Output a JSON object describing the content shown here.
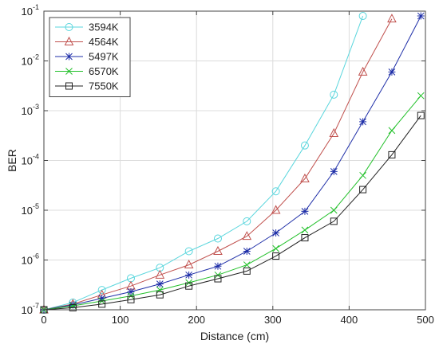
{
  "chart_data": {
    "type": "line",
    "title": "",
    "xlabel": "Distance (cm)",
    "ylabel": "BER",
    "xlim": [
      0,
      500
    ],
    "ylim": [
      1e-07,
      0.1
    ],
    "yscale": "log",
    "grid": true,
    "legend_position": "top-left",
    "x_ticks": [
      0,
      100,
      200,
      300,
      400,
      500
    ],
    "y_tick_exponents": [
      -7,
      -6,
      -5,
      -4,
      -3,
      -2,
      -1
    ],
    "series": [
      {
        "name": "3594K",
        "color": "#5ad6dd",
        "marker": "circle",
        "x": [
          0,
          38,
          76,
          114,
          152,
          190,
          228,
          266,
          304,
          342,
          380,
          418
        ],
        "y": [
          1e-07,
          1.4e-07,
          2.5e-07,
          4.3e-07,
          7e-07,
          1.5e-06,
          2.7e-06,
          6e-06,
          2.4e-05,
          0.0002,
          0.0021,
          0.08
        ]
      },
      {
        "name": "4564K",
        "color": "#c0504d",
        "marker": "triangle",
        "x": [
          0,
          38,
          76,
          114,
          152,
          190,
          228,
          266,
          304,
          342,
          380,
          418,
          456
        ],
        "y": [
          1e-07,
          1.3e-07,
          2e-07,
          3e-07,
          5e-07,
          8e-07,
          1.5e-06,
          3e-06,
          1e-05,
          4.3e-05,
          0.00035,
          0.006,
          0.07
        ]
      },
      {
        "name": "5497K",
        "color": "#1f2fa8",
        "marker": "star",
        "x": [
          0,
          38,
          76,
          114,
          152,
          190,
          228,
          266,
          304,
          342,
          380,
          418,
          456,
          494
        ],
        "y": [
          1e-07,
          1.25e-07,
          1.7e-07,
          2.3e-07,
          3.3e-07,
          5e-07,
          7.5e-07,
          1.5e-06,
          3.5e-06,
          9.5e-06,
          6e-05,
          0.0006,
          0.006,
          0.08
        ]
      },
      {
        "name": "6570K",
        "color": "#22c02a",
        "marker": "x",
        "x": [
          0,
          38,
          76,
          114,
          152,
          190,
          228,
          266,
          304,
          342,
          380,
          418,
          456,
          494
        ],
        "y": [
          1e-07,
          1.2e-07,
          1.5e-07,
          1.9e-07,
          2.5e-07,
          3.5e-07,
          5e-07,
          8e-07,
          1.7e-06,
          4e-06,
          1e-05,
          5e-05,
          0.0004,
          0.002
        ]
      },
      {
        "name": "7550K",
        "color": "#222222",
        "marker": "square",
        "x": [
          0,
          38,
          76,
          114,
          152,
          190,
          228,
          266,
          304,
          342,
          380,
          418,
          456,
          494
        ],
        "y": [
          1e-07,
          1.1e-07,
          1.3e-07,
          1.6e-07,
          2e-07,
          3e-07,
          4.2e-07,
          6e-07,
          1.2e-06,
          2.8e-06,
          6e-06,
          2.6e-05,
          0.00013,
          0.0008
        ]
      }
    ]
  }
}
